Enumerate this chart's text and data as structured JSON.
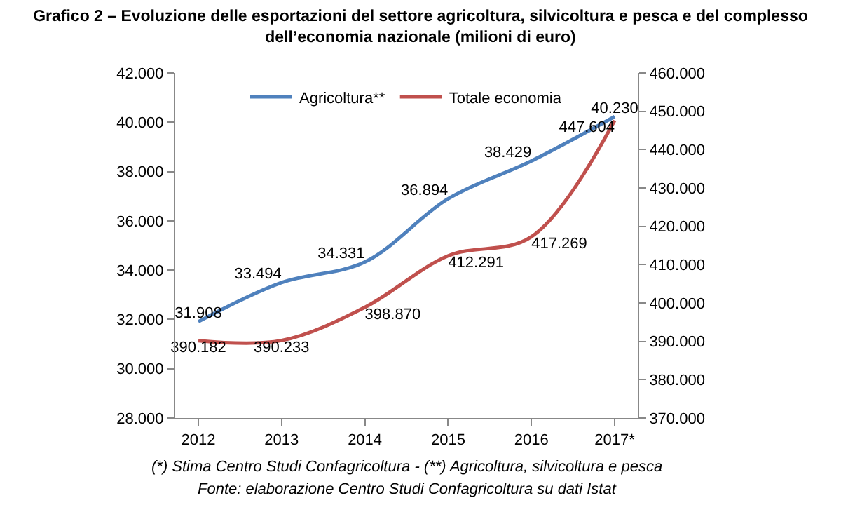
{
  "chart_data": {
    "type": "line",
    "title": "Grafico 2 – Evoluzione delle esportazioni del settore agricoltura, silvicoltura e pesca e del complesso dell’economia nazionale (milioni di euro)",
    "categories": [
      "2012",
      "2013",
      "2014",
      "2015",
      "2016",
      "2017*"
    ],
    "series": [
      {
        "name": "Agricoltura**",
        "color": "#4f81bd",
        "values": [
          31908,
          33494,
          34331,
          36894,
          38429,
          40230
        ],
        "value_labels": [
          "31.908",
          "33.494",
          "34.331",
          "36.894",
          "38.429",
          "40.230"
        ]
      },
      {
        "name": "Totale economia",
        "color": "#c0504d",
        "axis": "y2",
        "values": [
          390182,
          390233,
          398870,
          412291,
          417269,
          447604
        ],
        "value_labels": [
          "390.182",
          "390.233",
          "398.870",
          "412.291",
          "417.269",
          "447.604"
        ]
      }
    ],
    "ylim": [
      28000,
      42000
    ],
    "yticks": [
      {
        "value": 28000,
        "label": "28.000"
      },
      {
        "value": 30000,
        "label": "30.000"
      },
      {
        "value": 32000,
        "label": "32.000"
      },
      {
        "value": 34000,
        "label": "34.000"
      },
      {
        "value": 36000,
        "label": "36.000"
      },
      {
        "value": 38000,
        "label": "38.000"
      },
      {
        "value": 40000,
        "label": "40.000"
      },
      {
        "value": 42000,
        "label": "42.000"
      }
    ],
    "y2lim": [
      370000,
      460000
    ],
    "y2ticks": [
      {
        "value": 370000,
        "label": "370.000"
      },
      {
        "value": 380000,
        "label": "380.000"
      },
      {
        "value": 390000,
        "label": "390.000"
      },
      {
        "value": 400000,
        "label": "400.000"
      },
      {
        "value": 410000,
        "label": "410.000"
      },
      {
        "value": 420000,
        "label": "420.000"
      },
      {
        "value": 430000,
        "label": "430.000"
      },
      {
        "value": 440000,
        "label": "440.000"
      },
      {
        "value": 450000,
        "label": "450.000"
      },
      {
        "value": 460000,
        "label": "460.000"
      }
    ],
    "grid": false,
    "legend": "top",
    "annotations": [
      "(*) Stima Centro Studi Confagricoltura - (**) Agricoltura, silvicoltura e pesca",
      "Fonte: elaborazione Centro Studi Confagricoltura su dati Istat"
    ]
  }
}
